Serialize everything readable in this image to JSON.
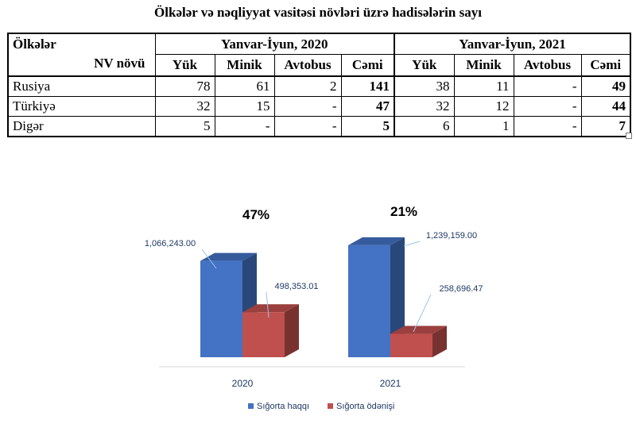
{
  "table": {
    "title": "Ölkələr və nəqliyyat vasitəsi növləri üzrə hadisələrin sayı",
    "corner_top": "Ölkələr",
    "corner_bottom": "NV növü",
    "periods": [
      "Yanvar-İyun, 2020",
      "Yanvar-İyun, 2021"
    ],
    "columns": [
      "Yük",
      "Minik",
      "Avtobus",
      "Cəmi"
    ],
    "rows": [
      {
        "country": "Rusiya",
        "y2020": [
          "78",
          "61",
          "2",
          "141"
        ],
        "y2021": [
          "38",
          "11",
          "-",
          "49"
        ]
      },
      {
        "country": "Türkiyə",
        "y2020": [
          "32",
          "15",
          "-",
          "47"
        ],
        "y2021": [
          "32",
          "12",
          "-",
          "44"
        ]
      },
      {
        "country": "Digər",
        "y2020": [
          "5",
          "-",
          "-",
          "5"
        ],
        "y2021": [
          "6",
          "1",
          "-",
          "7"
        ]
      }
    ]
  },
  "chart_data": {
    "type": "bar",
    "categories": [
      "2020",
      "2021"
    ],
    "series": [
      {
        "name": "Sığorta haqqı",
        "values": [
          1066243.0,
          1239159.0
        ],
        "labels": [
          "1,066,243.00",
          "1,239,159.00"
        ],
        "color": "#4472C4"
      },
      {
        "name": "Sığorta ödənişi",
        "values": [
          498353.01,
          258696.47
        ],
        "labels": [
          "498,353.01",
          "258,696.47"
        ],
        "color": "#C0504D"
      }
    ],
    "annotations": [
      "47%",
      "21%"
    ],
    "legend_position": "bottom",
    "style": "3d-clustered-column",
    "ylim": [
      0,
      1300000
    ],
    "grid": false
  }
}
